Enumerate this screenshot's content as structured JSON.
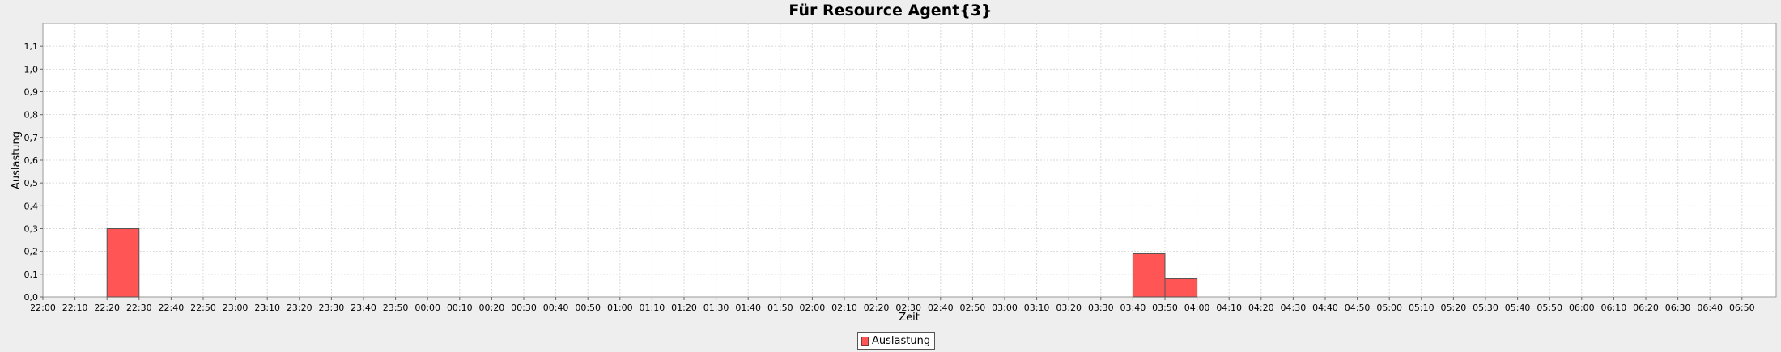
{
  "chart_data": {
    "type": "bar",
    "title": "Für Resource Agent{3}",
    "xlabel": "Zeit",
    "ylabel": "Auslastung",
    "ylim": [
      0,
      1.2
    ],
    "yticks": [
      "0,0",
      "0,1",
      "0,2",
      "0,3",
      "0,4",
      "0,5",
      "0,6",
      "0,7",
      "0,8",
      "0,9",
      "1,0",
      "1,1"
    ],
    "xticks": [
      "22:00",
      "22:10",
      "22:20",
      "22:30",
      "22:40",
      "22:50",
      "23:00",
      "23:10",
      "23:20",
      "23:30",
      "23:40",
      "23:50",
      "00:00",
      "00:10",
      "00:20",
      "00:30",
      "00:40",
      "00:50",
      "01:00",
      "01:10",
      "01:20",
      "01:30",
      "01:40",
      "01:50",
      "02:00",
      "02:10",
      "02:20",
      "02:30",
      "02:40",
      "02:50",
      "03:00",
      "03:10",
      "03:20",
      "03:30",
      "03:40",
      "03:50",
      "04:00",
      "04:10",
      "04:20",
      "04:30",
      "04:40",
      "04:50",
      "05:00",
      "05:10",
      "05:20",
      "05:30",
      "05:40",
      "05:50",
      "06:00",
      "06:10",
      "06:20",
      "06:30",
      "06:40",
      "06:50"
    ],
    "bars": [
      {
        "start": "22:20",
        "end": "22:30",
        "value": 0.3
      },
      {
        "start": "03:40",
        "end": "03:50",
        "value": 0.19
      },
      {
        "start": "03:50",
        "end": "04:00",
        "value": 0.08
      }
    ],
    "grid": true,
    "legend_position": "bottom",
    "series": [
      {
        "name": "Auslastung",
        "color": "#ff5555"
      }
    ]
  }
}
